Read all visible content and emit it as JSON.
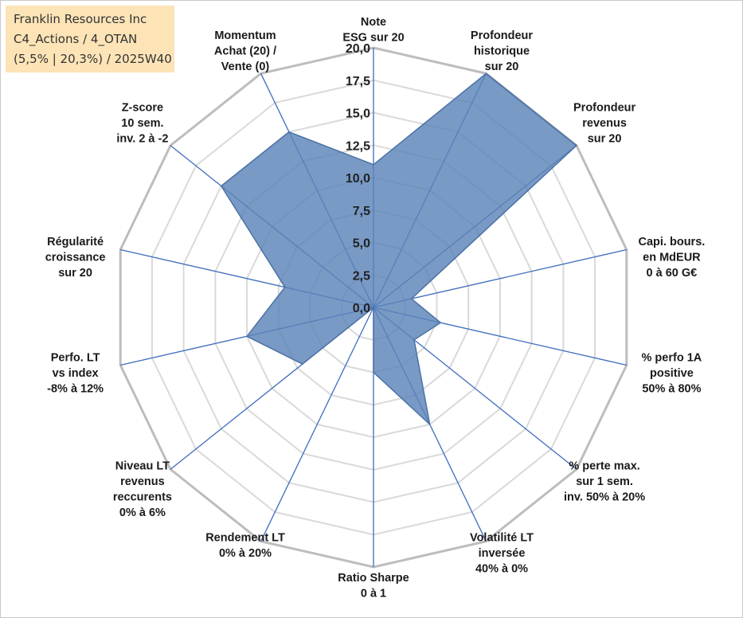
{
  "title_box": {
    "line1": "Franklin Resources Inc",
    "line2": "C4_Actions / 4_OTAN",
    "line3": "(5,5% | 20,3%) / 2025W40"
  },
  "colors": {
    "fill": "#5b84b8",
    "stroke": "#4a72a6",
    "spoke": "#3d6cbd",
    "grid_outer": "#bdbdbd",
    "grid_inner": "#d9d9d9",
    "title_bg": "#fce4b6"
  },
  "chart_data": {
    "type": "radar",
    "title": "",
    "rmin": 0,
    "rmax": 20,
    "tick_labels": [
      "0,0",
      "2,5",
      "5,0",
      "7,5",
      "10,0",
      "12,5",
      "15,0",
      "17,5",
      "20,0"
    ],
    "axes": [
      {
        "lines": [
          "Note",
          "ESG sur 20"
        ],
        "value": 11.0
      },
      {
        "lines": [
          "Profondeur",
          "historique",
          "sur 20"
        ],
        "value": 20.0
      },
      {
        "lines": [
          "Profondeur",
          "revenus",
          "sur 20"
        ],
        "value": 20.0
      },
      {
        "lines": [
          "Capi. bours.",
          "en MdEUR",
          "0 à 60 G€"
        ],
        "value": 3.0
      },
      {
        "lines": [
          "% perfo 1A",
          "positive",
          "50% à 80%"
        ],
        "value": 5.3
      },
      {
        "lines": [
          "% perte max.",
          "sur 1 sem.",
          "inv. 50% à 20%"
        ],
        "value": 4.0
      },
      {
        "lines": [
          "Volatilité LT",
          "inversée",
          "40% à 0%"
        ],
        "value": 10.0
      },
      {
        "lines": [
          "Ratio Sharpe",
          "0 à 1"
        ],
        "value": 5.0
      },
      {
        "lines": [
          "Rendement LT",
          "0% à 20%"
        ],
        "value": 0.0
      },
      {
        "lines": [
          "Niveau LT",
          "revenus",
          "reccurents",
          "0% à 6%"
        ],
        "value": 7.0
      },
      {
        "lines": [
          "Perfo. LT",
          "vs index",
          "-8% à 12%"
        ],
        "value": 10.0
      },
      {
        "lines": [
          "Régularité",
          "croissance",
          "sur 20"
        ],
        "value": 7.0
      },
      {
        "lines": [
          "Z-score",
          "10 sem.",
          "inv. 2 à -2"
        ],
        "value": 15.0
      },
      {
        "lines": [
          "Momentum",
          "Achat (20) /",
          "Vente (0)"
        ],
        "value": 15.0
      }
    ]
  }
}
